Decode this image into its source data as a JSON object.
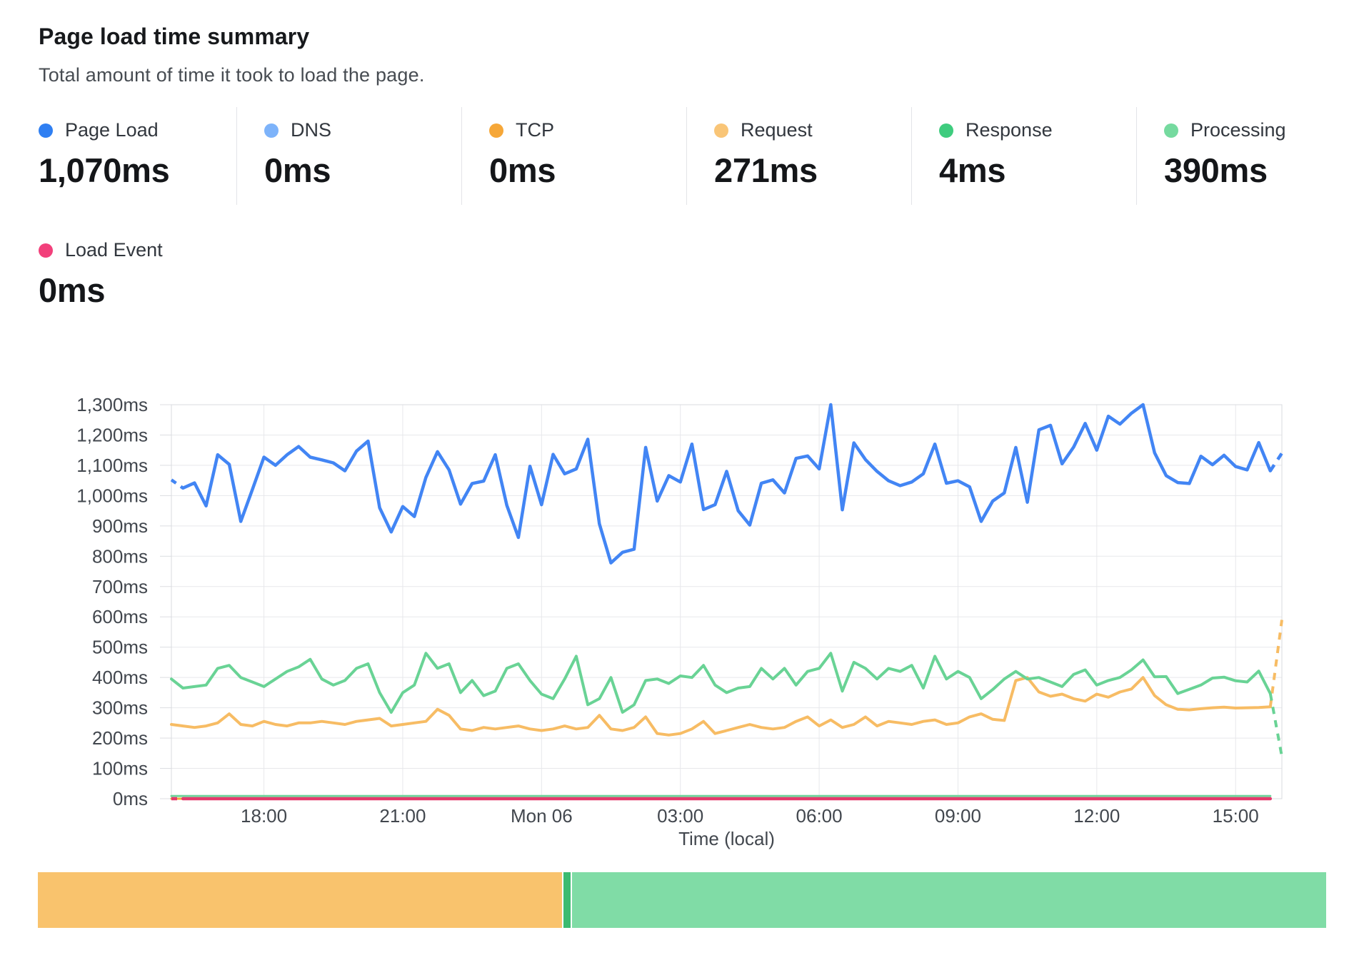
{
  "header": {
    "title": "Page load time summary",
    "subtitle": "Total amount of time it took to load the page."
  },
  "metrics": [
    {
      "label": "Page Load",
      "value": "1,070ms",
      "color": "#2f7ff2"
    },
    {
      "label": "DNS",
      "value": "0ms",
      "color": "#7db3fa"
    },
    {
      "label": "TCP",
      "value": "0ms",
      "color": "#f6a738"
    },
    {
      "label": "Request",
      "value": "271ms",
      "color": "#f9c577"
    },
    {
      "label": "Response",
      "value": "4ms",
      "color": "#3ecc7e"
    },
    {
      "label": "Processing",
      "value": "390ms",
      "color": "#75da9f"
    }
  ],
  "metrics_row2": [
    {
      "label": "Load Event",
      "value": "0ms",
      "color": "#f2407b"
    }
  ],
  "chart_data": {
    "type": "line",
    "xlabel": "Time (local)",
    "ylim": [
      0,
      1300
    ],
    "y_tick_step": 100,
    "y_tick_suffix": "ms",
    "grid": true,
    "points_count": 97,
    "x_tick_labels": [
      "18:00",
      "21:00",
      "Mon 06",
      "03:00",
      "06:00",
      "09:00",
      "12:00",
      "15:00"
    ],
    "x_tick_indices": [
      8,
      20,
      32,
      44,
      56,
      68,
      80,
      92
    ],
    "series": [
      {
        "name": "DNS",
        "color": "#7db3fa",
        "width": 3,
        "constant": 0,
        "end_index": 95
      },
      {
        "name": "TCP",
        "color": "#f6a738",
        "width": 3,
        "constant": 0,
        "end_index": 95
      },
      {
        "name": "Request",
        "color": "#f7bc64",
        "width": 4,
        "dash_last": true,
        "values": [
          245,
          240,
          235,
          240,
          250,
          280,
          245,
          240,
          255,
          245,
          240,
          250,
          250,
          255,
          250,
          245,
          255,
          260,
          265,
          240,
          245,
          250,
          255,
          295,
          275,
          230,
          225,
          235,
          230,
          235,
          240,
          230,
          225,
          230,
          240,
          230,
          235,
          275,
          230,
          225,
          235,
          270,
          215,
          210,
          215,
          230,
          255,
          215,
          225,
          235,
          245,
          235,
          230,
          235,
          255,
          270,
          240,
          260,
          235,
          245,
          270,
          240,
          255,
          250,
          245,
          255,
          260,
          245,
          250,
          270,
          280,
          262,
          258,
          390,
          400,
          352,
          338,
          345,
          330,
          322,
          345,
          335,
          352,
          362,
          400,
          340,
          310,
          295,
          293,
          297,
          300,
          302,
          299,
          300,
          301,
          303,
          590
        ]
      },
      {
        "name": "Processing",
        "color": "#69d395",
        "width": 4,
        "dash_last": true,
        "values": [
          395,
          365,
          370,
          375,
          430,
          440,
          400,
          385,
          370,
          395,
          420,
          435,
          460,
          395,
          375,
          390,
          430,
          445,
          350,
          285,
          350,
          375,
          480,
          430,
          445,
          350,
          390,
          340,
          355,
          430,
          445,
          390,
          345,
          330,
          395,
          470,
          310,
          330,
          400,
          285,
          310,
          390,
          395,
          380,
          405,
          400,
          440,
          375,
          350,
          365,
          370,
          430,
          395,
          430,
          375,
          420,
          430,
          480,
          355,
          450,
          430,
          395,
          430,
          420,
          440,
          365,
          470,
          395,
          420,
          400,
          330,
          360,
          395,
          420,
          395,
          400,
          385,
          370,
          410,
          425,
          375,
          390,
          400,
          425,
          458,
          402,
          403,
          347,
          361,
          375,
          398,
          401,
          389,
          385,
          421,
          347,
          139
        ]
      },
      {
        "name": "Page Load",
        "color": "#4285f4",
        "width": 4.5,
        "dash_first": true,
        "dash_last": true,
        "values": [
          1052,
          1025,
          1042,
          966,
          1135,
          1103,
          915,
          1020,
          1127,
          1100,
          1135,
          1162,
          1127,
          1118,
          1108,
          1082,
          1147,
          1180,
          960,
          880,
          964,
          931,
          1060,
          1145,
          1085,
          972,
          1040,
          1048,
          1135,
          968,
          862,
          1097,
          970,
          1136,
          1072,
          1088,
          1186,
          907,
          778,
          813,
          823,
          1159,
          982,
          1066,
          1045,
          1170,
          954,
          970,
          1080,
          950,
          903,
          1041,
          1052,
          1009,
          1123,
          1131,
          1088,
          1300,
          953,
          1174,
          1119,
          1080,
          1049,
          1033,
          1045,
          1072,
          1170,
          1041,
          1049,
          1029,
          915,
          982,
          1009,
          1159,
          978,
          1217,
          1232,
          1105,
          1160,
          1238,
          1150,
          1262,
          1236,
          1272,
          1300,
          1141,
          1066,
          1043,
          1040,
          1130,
          1102,
          1133,
          1096,
          1085,
          1175,
          1082,
          1140
        ]
      },
      {
        "name": "Response",
        "color": "#6fd59c",
        "width": 3,
        "constant": 4,
        "end_index": 95
      },
      {
        "name": "Load Event",
        "color": "#e43a6c",
        "width": 4.5,
        "dash_first": true,
        "constant": 0,
        "end_index": 95
      }
    ]
  },
  "stacked_bar": {
    "segments": [
      {
        "name": "Request",
        "color": "#f9c36d",
        "fraction": 0.4075
      },
      {
        "name": "Response",
        "color": "#3bbb71",
        "fraction": 0.006
      },
      {
        "name": "Processing",
        "color": "#80dca6",
        "fraction": 0.5865
      }
    ]
  }
}
